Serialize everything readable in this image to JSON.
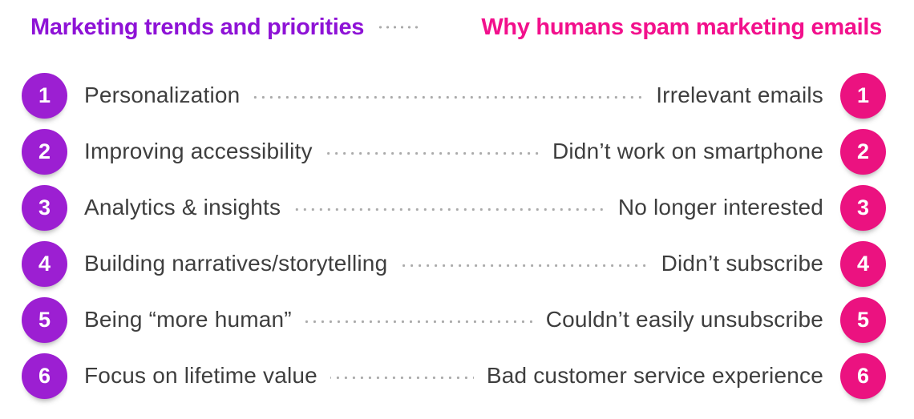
{
  "header": {
    "left_title": "Marketing trends and priorities",
    "right_title": "Why humans spam marketing emails"
  },
  "colors": {
    "heading_purple": "#8e12d6",
    "heading_pink": "#f2108c",
    "purple": "#9c1fd2",
    "pink": "#eb1280",
    "text": "#3e3e3e",
    "dots": "#aaaaaa"
  },
  "rows": [
    {
      "number": "1",
      "left": "Personalization",
      "right": "Irrelevant emails"
    },
    {
      "number": "2",
      "left": "Improving accessibility",
      "right": "Didn’t work on smartphone"
    },
    {
      "number": "3",
      "left": "Analytics & insights",
      "right": "No longer interested"
    },
    {
      "number": "4",
      "left": "Building narratives/storytelling",
      "right": "Didn’t subscribe"
    },
    {
      "number": "5",
      "left": "Being “more human”",
      "right": "Couldn’t easily unsubscribe"
    },
    {
      "number": "6",
      "left": "Focus on lifetime value",
      "right": "Bad customer service experience"
    }
  ]
}
